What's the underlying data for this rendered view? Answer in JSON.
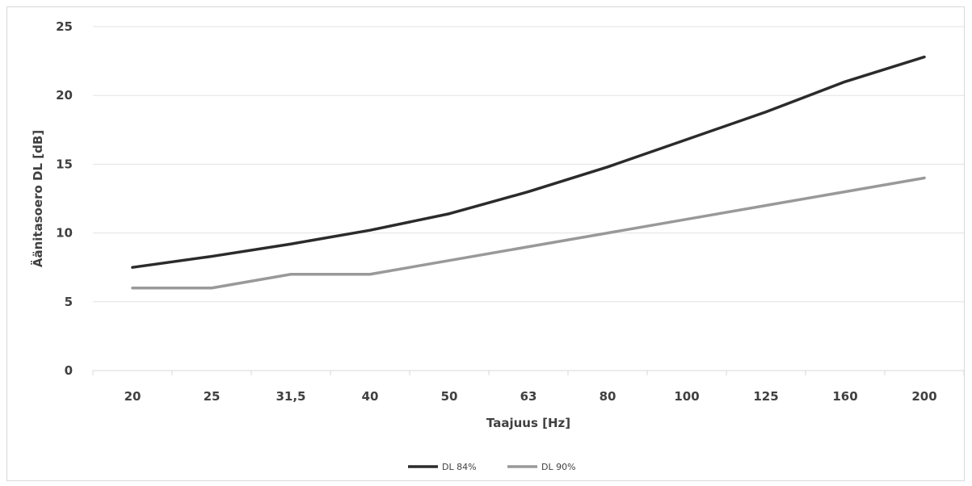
{
  "chart_data": {
    "type": "line",
    "categories": [
      "20",
      "25",
      "31,5",
      "40",
      "50",
      "63",
      "80",
      "100",
      "125",
      "160",
      "200"
    ],
    "series": [
      {
        "name": "DL 84%",
        "color": "#2b2b2b",
        "values": [
          7.5,
          8.3,
          9.2,
          10.2,
          11.4,
          13.0,
          14.8,
          16.8,
          18.8,
          21.0,
          22.8
        ]
      },
      {
        "name": "DL 90%",
        "color": "#999999",
        "values": [
          6,
          6,
          7,
          7,
          8,
          9,
          10,
          11,
          12,
          13,
          14
        ]
      }
    ],
    "xlabel": "Taajuus [Hz]",
    "ylabel": "Äänitasoero DL [dB]",
    "ylim": [
      0,
      25
    ],
    "yticks": [
      "0",
      "5",
      "10",
      "15",
      "20",
      "25"
    ],
    "grid": true,
    "legend_position": "bottom"
  }
}
